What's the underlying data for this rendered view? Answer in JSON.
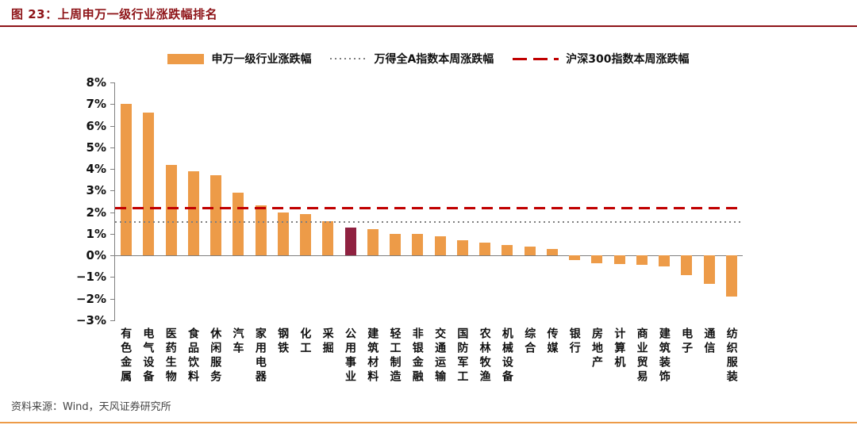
{
  "header": {
    "title": "图 23：上周申万一级行业涨跌幅排名"
  },
  "footer": {
    "source": "资料来源：Wind，天风证券研究所"
  },
  "colors": {
    "accent_red": "#8e1418",
    "bar_orange": "#ed9b48",
    "highlight_maroon": "#8f2140",
    "csi300_red": "#c00000",
    "winda_gray": "#7f7f7f",
    "axis_gray": "#808080",
    "footer_rule_orange": "#ed9b48"
  },
  "chart_data": {
    "type": "bar",
    "title": "上周申万一级行业涨跌幅排名",
    "series_name": "申万一级行业涨跌幅",
    "categories": [
      "有色金属",
      "电气设备",
      "医药生物",
      "食品饮料",
      "休闲服务",
      "汽车",
      "家用电器",
      "钢铁",
      "化工",
      "采掘",
      "公用事业",
      "建筑材料",
      "轻工制造",
      "非银金融",
      "交通运输",
      "国防军工",
      "农林牧渔",
      "机械设备",
      "综合",
      "传媒",
      "银行",
      "房地产",
      "计算机",
      "商业贸易",
      "建筑装饰",
      "电子",
      "通信",
      "纺织服装"
    ],
    "values": [
      7.0,
      6.6,
      4.2,
      3.9,
      3.7,
      2.9,
      2.3,
      2.0,
      1.9,
      1.6,
      1.3,
      1.2,
      1.0,
      1.0,
      0.9,
      0.7,
      0.6,
      0.5,
      0.4,
      0.3,
      -0.2,
      -0.35,
      -0.4,
      -0.45,
      -0.5,
      -0.9,
      -1.3,
      -1.9
    ],
    "value_unit": "%",
    "bar_color": "#ed9b48",
    "highlight_category": "公用事业",
    "highlight_color": "#8f2140",
    "reference_lines": [
      {
        "name": "万得全A指数本周涨跌幅",
        "value": 1.6,
        "style": "dotted",
        "color": "#7f7f7f"
      },
      {
        "name": "沪深300指数本周涨跌幅",
        "value": 2.25,
        "style": "dashed",
        "color": "#c00000"
      }
    ],
    "ylim": [
      -3,
      8
    ],
    "ytick_step": 1,
    "ytick_labels": [
      "8%",
      "7%",
      "6%",
      "5%",
      "4%",
      "3%",
      "2%",
      "1%",
      "0%",
      "−1%",
      "−2%",
      "−3%"
    ],
    "legend_position": "top",
    "grid": false
  }
}
